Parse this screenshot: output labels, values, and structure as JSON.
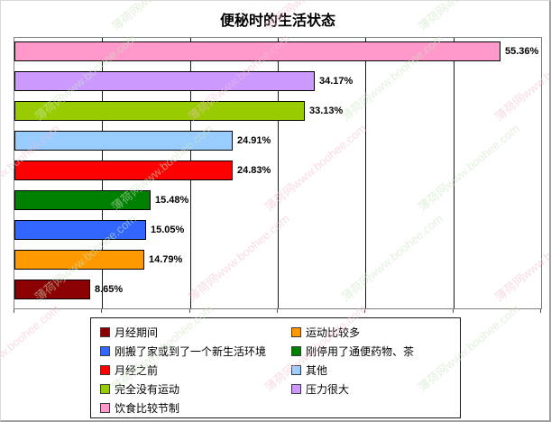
{
  "title": "便秘时的生活状态",
  "watermark": {
    "text": "薄荷网www.boohee.com",
    "pink_color": "#f2bfd3",
    "green_color": "#cde5c4"
  },
  "chart_data": {
    "type": "bar",
    "orientation": "horizontal",
    "title": "便秘时的生活状态",
    "xlabel": "",
    "ylabel": "",
    "xlim": [
      0,
      60
    ],
    "gridline_step": 10,
    "grid": true,
    "legend_position": "bottom",
    "categories": [
      "饮食比较节制",
      "压力很大",
      "完全没有运动",
      "其他",
      "月经之前",
      "刚停用了通便药物、茶",
      "刚搬了家或到了一个新生活环境",
      "运动比较多",
      "月经期间"
    ],
    "values": [
      55.36,
      34.17,
      33.13,
      24.91,
      24.83,
      15.48,
      15.05,
      14.79,
      8.65
    ],
    "display_values": [
      "55.36%",
      "34.17%",
      "33.13%",
      "24.91%",
      "24.83%",
      "15.48%",
      "15.05%",
      "14.79%",
      "8.65%"
    ],
    "colors": [
      "#ff99cc",
      "#cc99ff",
      "#99cc00",
      "#99ccff",
      "#ff0000",
      "#008000",
      "#3366ff",
      "#ff9900",
      "#8b0000"
    ]
  },
  "legend": {
    "items": [
      {
        "label": "月经期间",
        "color": "#8b0000"
      },
      {
        "label": "运动比较多",
        "color": "#ff9900"
      },
      {
        "label": "刚搬了家或到了一个新生活环境",
        "color": "#3366ff"
      },
      {
        "label": "刚停用了通便药物、茶",
        "color": "#008000"
      },
      {
        "label": "月经之前",
        "color": "#ff0000"
      },
      {
        "label": "其他",
        "color": "#99ccff"
      },
      {
        "label": "完全没有运动",
        "color": "#99cc00"
      },
      {
        "label": "压力很大",
        "color": "#cc99ff"
      },
      {
        "label": "饮食比较节制",
        "color": "#ff99cc"
      }
    ]
  }
}
